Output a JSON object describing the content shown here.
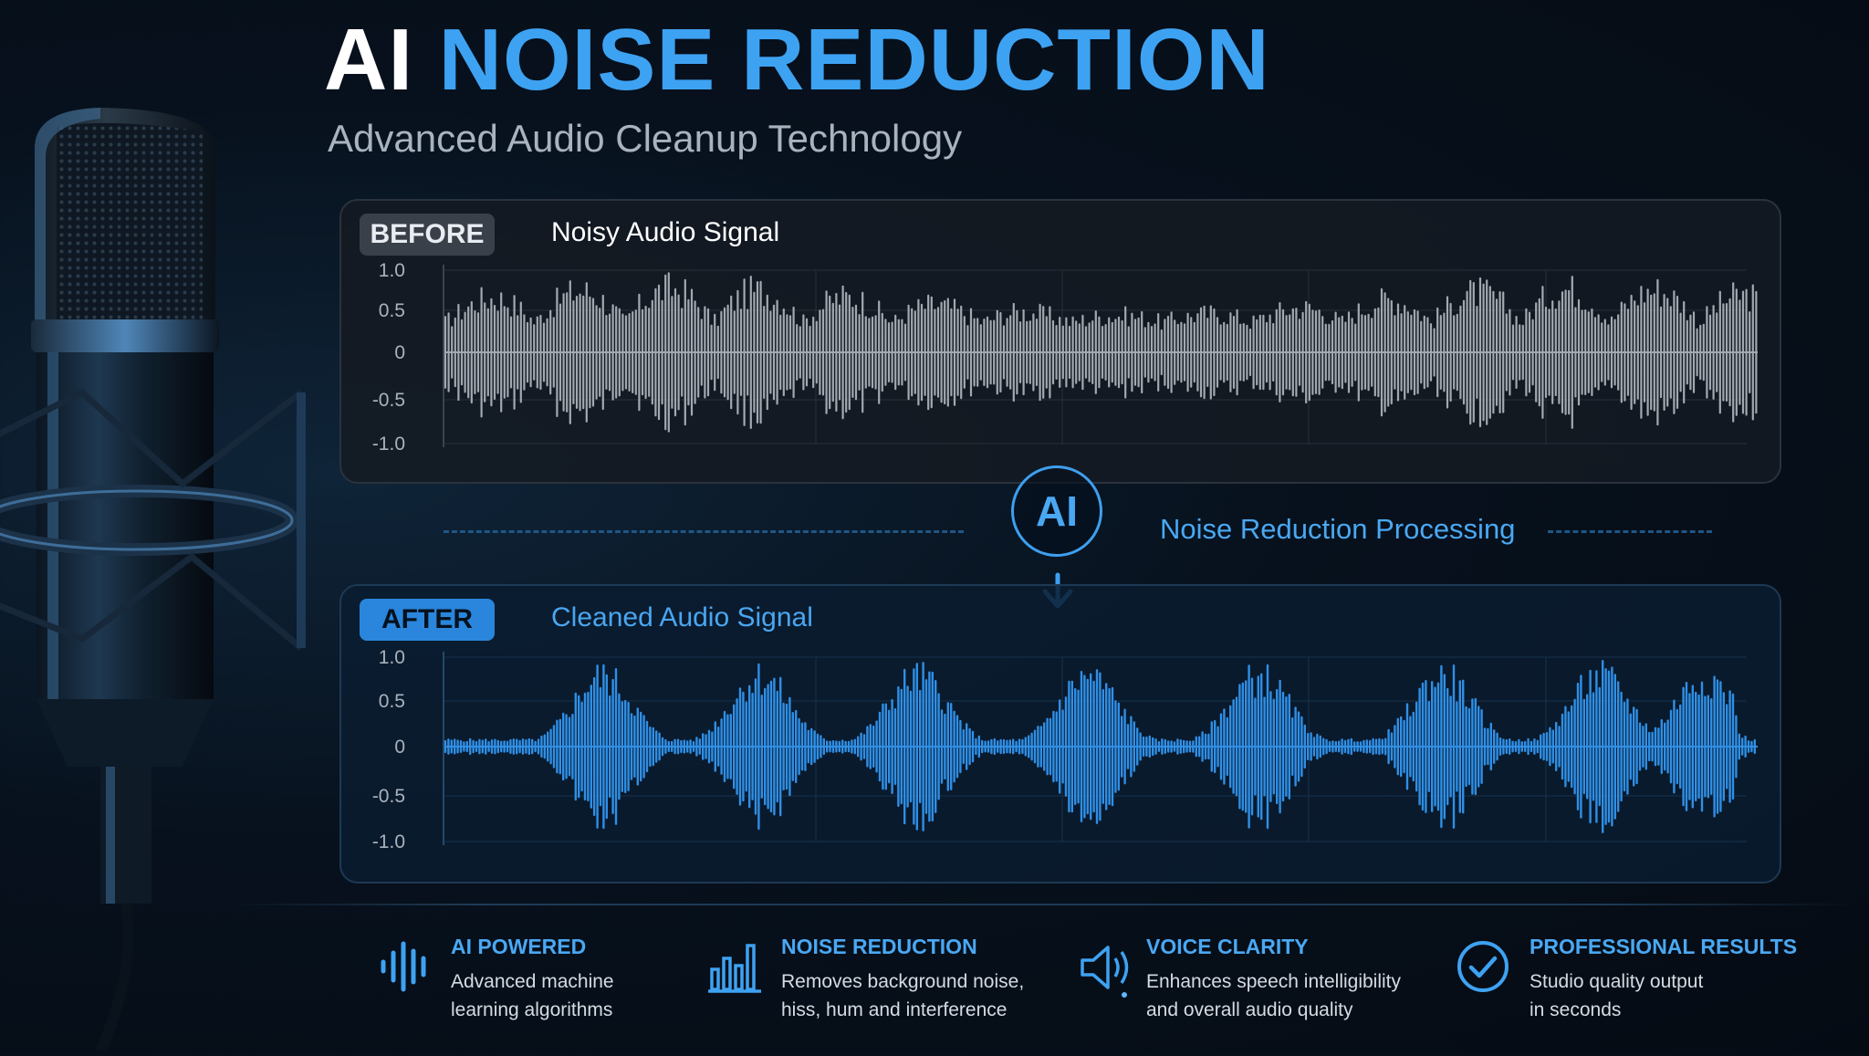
{
  "header": {
    "title_word1": "AI",
    "title_word2": "NOISE REDUCTION",
    "subtitle": "Advanced Audio Cleanup Technology"
  },
  "before_panel": {
    "badge": "BEFORE",
    "label": "Noisy Audio Signal",
    "y_ticks": [
      "1.0",
      "0.5",
      "0",
      "-0.5",
      "-1.0"
    ]
  },
  "after_panel": {
    "badge": "AFTER",
    "label": "Cleaned Audio Signal",
    "y_ticks": [
      "1.0",
      "0.5",
      "0",
      "-0.5",
      "-1.0"
    ]
  },
  "processing": {
    "ai_label": "AI",
    "text": "Noise Reduction Processing"
  },
  "features": [
    {
      "icon": "soundwave-icon",
      "title": "AI POWERED",
      "desc": "Advanced machine\nlearning algorithms"
    },
    {
      "icon": "equalizer-bars-icon",
      "title": "NOISE REDUCTION",
      "desc": "Removes background noise,\nhiss, hum and interference"
    },
    {
      "icon": "speaker-icon",
      "title": "VOICE CLARITY",
      "desc": "Enhances speech intelligibility\nand overall audio quality"
    },
    {
      "icon": "checkmark-circle-icon",
      "title": "PROFESSIONAL RESULTS",
      "desc": "Studio quality output\nin seconds"
    }
  ],
  "colors": {
    "accent": "#3ea2f2",
    "noisy_wave": "#a3a9b0",
    "clean_wave": "#2f8fe6",
    "background": "#07111d"
  }
}
